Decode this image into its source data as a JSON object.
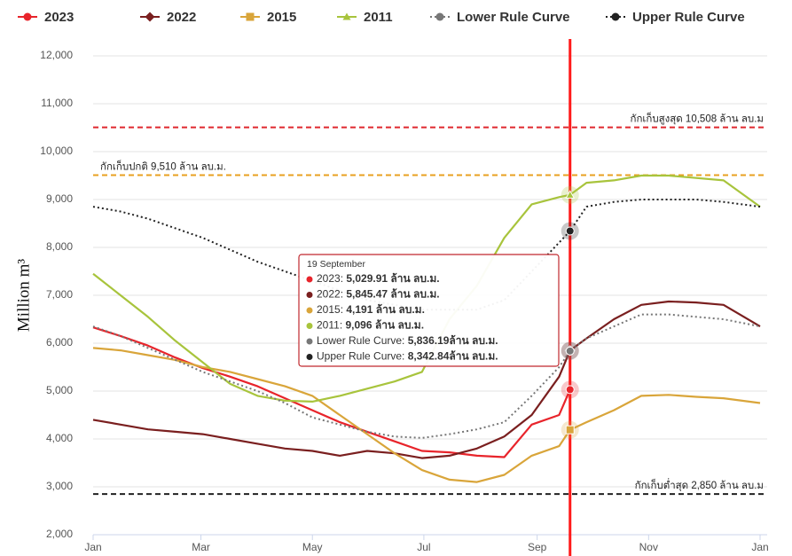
{
  "chart_data": {
    "type": "line",
    "y_label": "Million m³",
    "x": [
      0,
      15,
      30,
      45,
      60,
      75,
      90,
      105,
      120,
      135,
      150,
      165,
      180,
      195,
      210,
      225,
      240,
      255,
      261,
      270,
      285,
      300,
      315,
      330,
      345,
      365
    ],
    "xlim": [
      0,
      365
    ],
    "xticks": [
      {
        "value": 0,
        "label": "Jan"
      },
      {
        "value": 59,
        "label": "Mar"
      },
      {
        "value": 120,
        "label": "May"
      },
      {
        "value": 181,
        "label": "Jul"
      },
      {
        "value": 243,
        "label": "Sep"
      },
      {
        "value": 304,
        "label": "Nov"
      },
      {
        "value": 365,
        "label": "Jan"
      }
    ],
    "ylim": [
      2000,
      12000
    ],
    "yticks": [
      {
        "value": 2000,
        "label": "2,000"
      },
      {
        "value": 3000,
        "label": "3,000"
      },
      {
        "value": 4000,
        "label": "4,000"
      },
      {
        "value": 5000,
        "label": "5,000"
      },
      {
        "value": 6000,
        "label": "6,000"
      },
      {
        "value": 7000,
        "label": "7,000"
      },
      {
        "value": 8000,
        "label": "8,000"
      },
      {
        "value": 9000,
        "label": "9,000"
      },
      {
        "value": 10000,
        "label": "10,000"
      },
      {
        "value": 11000,
        "label": "11,000"
      },
      {
        "value": 12000,
        "label": "12,000"
      }
    ],
    "grid": true,
    "legend": "top",
    "series": [
      {
        "name": "2023",
        "color": "#e8242b",
        "marker": "circle",
        "dash": false,
        "tooltip_label": "5,029.91 ล้าน ลบ.ม.",
        "values": [
          6330,
          6150,
          5950,
          5700,
          5480,
          5300,
          5100,
          4850,
          4600,
          4350,
          4150,
          3950,
          3750,
          3720,
          3650,
          3620,
          4300,
          4500,
          5029.91,
          null,
          null,
          null,
          null,
          null,
          null,
          null
        ]
      },
      {
        "name": "2022",
        "color": "#7a1f1f",
        "marker": "diamond",
        "dash": false,
        "tooltip_label": "5,845.47 ล้าน ลบ.ม.",
        "values": [
          4400,
          4300,
          4200,
          4150,
          4100,
          4000,
          3900,
          3800,
          3750,
          3650,
          3750,
          3700,
          3600,
          3650,
          3800,
          4050,
          4500,
          5300,
          5845.47,
          6100,
          6500,
          6800,
          6870,
          6850,
          6800,
          6350
        ]
      },
      {
        "name": "2015",
        "color": "#d9a53a",
        "marker": "square",
        "dash": false,
        "tooltip_label": "4,191 ล้าน ลบ.ม.",
        "values": [
          5900,
          5850,
          5750,
          5650,
          5500,
          5400,
          5250,
          5100,
          4900,
          4500,
          4100,
          3700,
          3350,
          3150,
          3100,
          3250,
          3650,
          3850,
          4191,
          4350,
          4600,
          4900,
          4920,
          4880,
          4850,
          4750
        ]
      },
      {
        "name": "2011",
        "color": "#a8c43c",
        "marker": "triangle",
        "dash": false,
        "tooltip_label": "9,096 ล้าน ลบ.ม.",
        "values": [
          7450,
          7000,
          6550,
          6050,
          5600,
          5150,
          4900,
          4800,
          4780,
          4900,
          5050,
          5200,
          5400,
          6500,
          7200,
          8200,
          8900,
          9050,
          9096,
          9350,
          9400,
          9500,
          9500,
          9450,
          9400,
          8850
        ]
      },
      {
        "name": "Lower Rule Curve",
        "color": "#777777",
        "marker": "circle",
        "dash": true,
        "tooltip_label": "5,836.19ล้าน ลบ.ม.",
        "values": [
          6350,
          6150,
          5900,
          5650,
          5400,
          5200,
          5000,
          4750,
          4450,
          4300,
          4150,
          4050,
          4020,
          4100,
          4200,
          4350,
          4900,
          5500,
          5836.19,
          6100,
          6350,
          6600,
          6600,
          6550,
          6500,
          6350
        ]
      },
      {
        "name": "Upper Rule Curve",
        "color": "#222222",
        "marker": "circle",
        "dash": true,
        "tooltip_label": "8,342.84ล้าน ลบ.ม.",
        "values": [
          8850,
          8750,
          8600,
          8400,
          8200,
          7950,
          7700,
          7500,
          7300,
          7100,
          6900,
          6800,
          6700,
          6700,
          6700,
          6900,
          7500,
          8100,
          8342.84,
          8850,
          8950,
          9000,
          9000,
          9000,
          8950,
          8850
        ]
      }
    ],
    "reference_lines": [
      {
        "value": 10508,
        "label": "กักเก็บสูงสุด 10,508 ล้าน ลบ.ม",
        "color": "#e0282e",
        "side": "right"
      },
      {
        "value": 9510,
        "label": "กักเก็บปกติ 9,510 ล้าน ลบ.ม.",
        "color": "#e8a020",
        "side": "left"
      },
      {
        "value": 2850,
        "label": "กักเก็บต่ำสุด 2,850 ล้าน ลบ.ม",
        "color": "#222222",
        "side": "right"
      }
    ],
    "cursor": {
      "x": 261,
      "color": "#ff1a1a"
    },
    "tooltip": {
      "title": "19 September"
    }
  }
}
